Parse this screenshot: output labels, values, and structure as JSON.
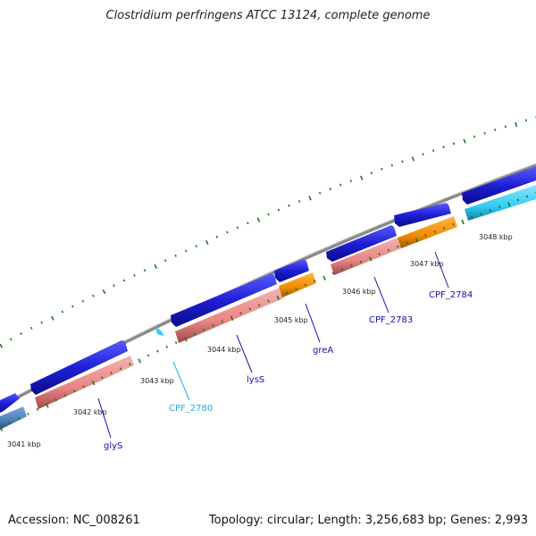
{
  "title": "Clostridium perfringens ATCC 13124, complete genome",
  "footer": {
    "accession": "Accession: NC_008261",
    "summary": "Topology: circular; Length: 3,256,683 bp; Genes: 2,993"
  },
  "scale_labels": [
    "3041 kbp",
    "3042 kbp",
    "3043 kbp",
    "3044 kbp",
    "3045 kbp",
    "3046 kbp",
    "3047 kbp",
    "3048 kbp"
  ],
  "gene_labels": [
    "glyS",
    "CPF_2780",
    "lysS",
    "greA",
    "CPF_2783",
    "CPF_2784"
  ],
  "colors": {
    "cds_arrow": "#1f1fd6",
    "rrna_pink": "#e98585",
    "orange": "#f08c00",
    "cyan": "#33ccf5",
    "steel": "#4a7fb8",
    "tick_green": "#1a7a1a",
    "backbone": "#8a8a8a",
    "label_blue": "#1111aa",
    "label_cyan": "#22aadd"
  }
}
